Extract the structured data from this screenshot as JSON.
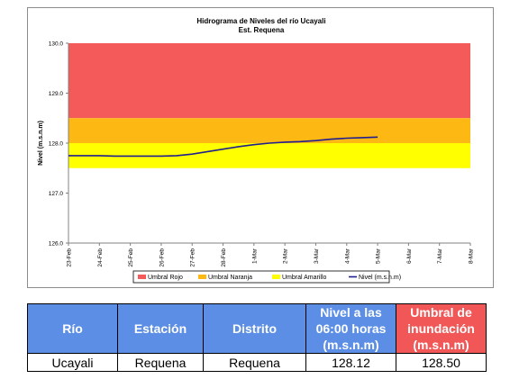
{
  "chart_data": {
    "type": "line",
    "title": "Hidrograma de Niveles del río Ucayali",
    "subtitle": "Est. Requena",
    "ylabel": "Nivel (m.s.n.m)",
    "xlabel": "",
    "ylim": [
      126.0,
      130.0
    ],
    "y_ticks": [
      "126.0",
      "127.0",
      "128.0",
      "129.0",
      "130.0"
    ],
    "x_ticks": [
      "23-Feb",
      "24-Feb",
      "25-Feb",
      "26-Feb",
      "27-Feb",
      "28-Feb",
      "1-Mar",
      "2-Mar",
      "3-Mar",
      "4-Mar",
      "5-Mar",
      "6-Mar",
      "7-Mar",
      "8-Mar"
    ],
    "bands": [
      {
        "name": "Umbral Rojo",
        "from": 128.5,
        "to": 130.0,
        "color": "#f45a5a"
      },
      {
        "name": "Umbral Naranja",
        "from": 128.0,
        "to": 128.5,
        "color": "#fdb813"
      },
      {
        "name": "Umbral Amarillo",
        "from": 127.5,
        "to": 128.0,
        "color": "#ffff00"
      }
    ],
    "series": [
      {
        "name": "Nivel (m.s.n.m)",
        "color": "#1f1f8f",
        "x": [
          0,
          0.5,
          1,
          1.5,
          2,
          2.5,
          3,
          3.5,
          4,
          4.5,
          5,
          5.5,
          6,
          6.5,
          7,
          7.5,
          8,
          8.5,
          9,
          9.5,
          10
        ],
        "values": [
          127.75,
          127.75,
          127.75,
          127.74,
          127.74,
          127.74,
          127.74,
          127.75,
          127.78,
          127.83,
          127.88,
          127.93,
          127.97,
          128.0,
          128.02,
          128.03,
          128.05,
          128.08,
          128.1,
          128.11,
          128.12
        ]
      }
    ],
    "legend": {
      "position": "bottom",
      "entries": [
        {
          "label": "Umbral Rojo",
          "color": "#f45a5a",
          "kind": "box"
        },
        {
          "label": "Umbral Naranja",
          "color": "#fdb813",
          "kind": "box"
        },
        {
          "label": "Umbral Amarillo",
          "color": "#ffff00",
          "kind": "box"
        },
        {
          "label": "Nivel (m.s.n.m)",
          "color": "#1f1f8f",
          "kind": "line"
        }
      ]
    },
    "grid": false
  },
  "table": {
    "headers": [
      "Río",
      "Estación",
      "Distrito",
      "Nivel a las 06:00 horas (m.s.n.m)",
      "Umbral de inundación (m.s.n.m)"
    ],
    "rows": [
      [
        "Ucayali",
        "Requena",
        "Requena",
        "128.12",
        "128.50"
      ]
    ]
  }
}
